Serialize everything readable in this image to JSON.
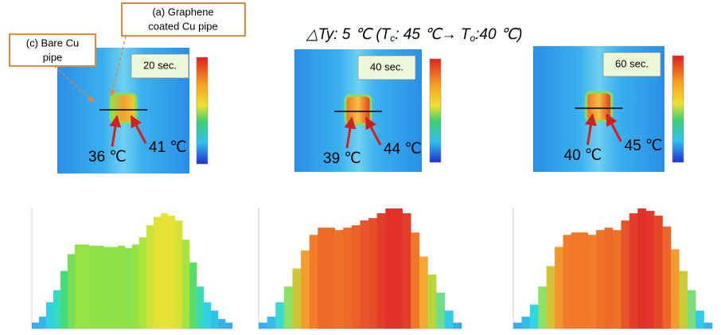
{
  "header": {
    "pre": "△Ty: 5 ℃ (T",
    "sub1": "c",
    "mid": ": 45  ℃→ T",
    "sub2": "o",
    "post": ":40 ℃)"
  },
  "callouts": {
    "coated": [
      "(a) Graphene",
      "coated Cu pipe"
    ],
    "bare": [
      "(c) Bare Cu",
      "pipe"
    ]
  },
  "panels": [
    {
      "time": "20 sec.",
      "bare_temp": "36 ℃",
      "coated_temp": "41 ℃",
      "histogram": {
        "type": "bar",
        "ylim": [
          0,
          100
        ],
        "values": [
          5,
          10,
          22,
          32,
          48,
          62,
          70,
          70,
          69,
          69,
          68,
          68,
          69,
          67,
          70,
          76,
          86,
          93,
          96,
          94,
          90,
          74,
          55,
          35,
          22,
          15,
          8,
          5
        ],
        "palette": [
          "#3aa0f0",
          "#2fd8e0",
          "#48dc70",
          "#a8e43a",
          "#f7e035"
        ]
      }
    },
    {
      "time": "40 sec.",
      "bare_temp": "39 ℃",
      "coated_temp": "44 ℃",
      "histogram": {
        "type": "bar",
        "ylim": [
          0,
          100
        ],
        "values": [
          5,
          10,
          22,
          35,
          50,
          65,
          78,
          84,
          84,
          82,
          84,
          86,
          90,
          92,
          96,
          100,
          100,
          96,
          80,
          60,
          45,
          30,
          15,
          5
        ],
        "palette": [
          "#3aa0f0",
          "#2fd8e0",
          "#a8e43a",
          "#f5a830",
          "#f07828",
          "#e0302a"
        ]
      }
    },
    {
      "time": "60 sec.",
      "bare_temp": "40 ℃",
      "coated_temp": "45 ℃",
      "histogram": {
        "type": "bar",
        "ylim": [
          0,
          100
        ],
        "values": [
          5,
          10,
          20,
          35,
          52,
          68,
          78,
          80,
          80,
          78,
          82,
          84,
          82,
          90,
          96,
          100,
          98,
          94,
          85,
          66,
          48,
          32,
          15,
          5
        ],
        "palette": [
          "#3aa0f0",
          "#2fd8e0",
          "#a8e43a",
          "#f5a830",
          "#f07828",
          "#e0302a"
        ]
      }
    }
  ]
}
